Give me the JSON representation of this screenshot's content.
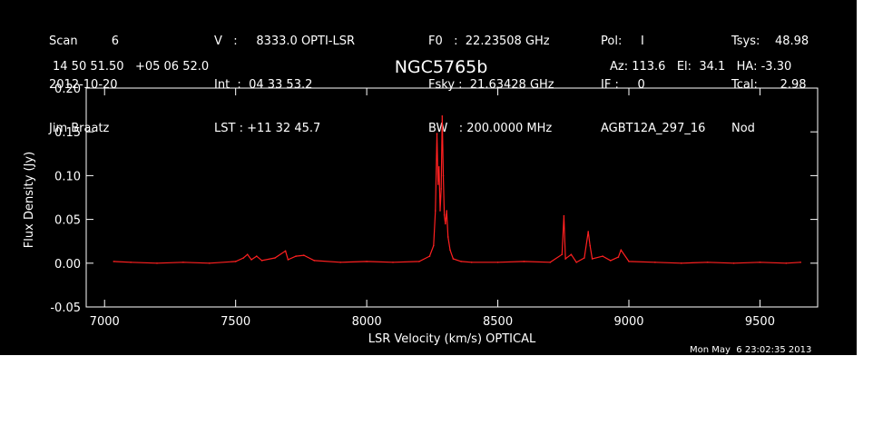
{
  "header": {
    "col1": [
      "Scan         6",
      "2012-10-20",
      "Jim Braatz"
    ],
    "col2": [
      "V   :     8333.0 OPTI-LSR",
      "Int  :  04 33 53.2",
      "LST : +11 32 45.7"
    ],
    "col3": [
      "F0   :  22.23508 GHz",
      "Fsky :  21.63428 GHz",
      "BW   : 200.0000 MHz"
    ],
    "col4": [
      "Pol:     I",
      "IF :     0",
      "AGBT12A_297_16"
    ],
    "col5": [
      "Tsys:    48.98",
      "Tcal:      2.98",
      "Nod"
    ],
    "coords": "14 50 51.50   +05 06 52.0",
    "source": "NGC5765b",
    "azel": "Az: 113.6   El:  34.1   HA: -3.30",
    "date": "Mon May  6 23:02:35 2013"
  },
  "colors": {
    "background": "#000000",
    "axes": "#ffffff",
    "trace": "#ff2020"
  },
  "chart_data": {
    "type": "line",
    "title": "NGC5765b",
    "xlabel": "LSR Velocity (km/s) OPTICAL",
    "ylabel": "Flux Density (Jy)",
    "xlim": [
      6930,
      9720
    ],
    "ylim": [
      -0.05,
      0.2
    ],
    "xticks": [
      7000,
      7500,
      8000,
      8500,
      9000,
      9500
    ],
    "yticks": [
      -0.05,
      0.0,
      0.05,
      0.1,
      0.15,
      0.2
    ],
    "ytick_labels": [
      "-0.05",
      "0.00",
      "0.05",
      "0.10",
      "0.15",
      "0.20"
    ],
    "series": [
      {
        "x": [
          7035,
          7100,
          7200,
          7300,
          7400,
          7500,
          7530,
          7545,
          7560,
          7580,
          7600,
          7650,
          7690,
          7700,
          7730,
          7760,
          7800,
          7900,
          8000,
          8100,
          8200,
          8240,
          8255,
          8262,
          8268,
          8272,
          8276,
          8280,
          8284,
          8288,
          8292,
          8296,
          8300,
          8305,
          8310,
          8318,
          8330,
          8360,
          8400,
          8500,
          8600,
          8700,
          8745,
          8752,
          8758,
          8780,
          8800,
          8830,
          8845,
          8852,
          8860,
          8900,
          8930,
          8960,
          8970,
          9000,
          9100,
          9200,
          9300,
          9400,
          9500,
          9600,
          9655
        ],
        "y": [
          0.002,
          0.001,
          0.0,
          0.001,
          0.0,
          0.002,
          0.006,
          0.01,
          0.004,
          0.008,
          0.003,
          0.006,
          0.014,
          0.004,
          0.008,
          0.009,
          0.003,
          0.001,
          0.002,
          0.001,
          0.002,
          0.008,
          0.02,
          0.06,
          0.148,
          0.09,
          0.11,
          0.06,
          0.085,
          0.168,
          0.1,
          0.055,
          0.045,
          0.06,
          0.03,
          0.015,
          0.005,
          0.002,
          0.001,
          0.001,
          0.002,
          0.001,
          0.01,
          0.054,
          0.005,
          0.01,
          0.001,
          0.006,
          0.036,
          0.02,
          0.005,
          0.008,
          0.003,
          0.007,
          0.015,
          0.002,
          0.001,
          0.0,
          0.001,
          0.0,
          0.001,
          0.0,
          0.001
        ]
      }
    ]
  }
}
